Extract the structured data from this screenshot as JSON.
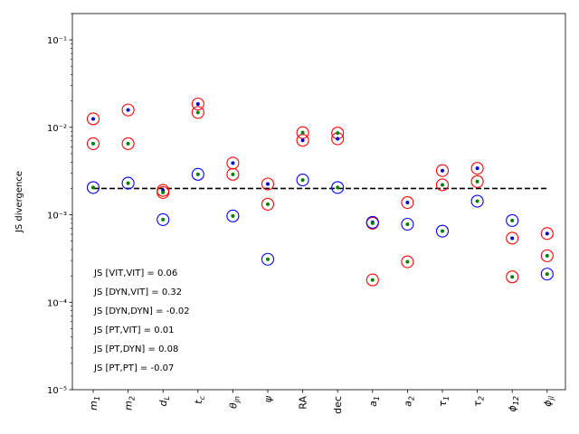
{
  "chart_data": {
    "type": "scatter",
    "title": "",
    "xlabel": "",
    "ylabel": "JS divergence",
    "yscale": "log",
    "ylim": [
      1e-05,
      0.2
    ],
    "y_tick_labels": [
      "10⁻⁵",
      "10⁻⁴",
      "10⁻³",
      "10⁻²",
      "10⁻¹"
    ],
    "y_tick_values": [
      1e-05,
      0.0001,
      0.001,
      0.01,
      0.1
    ],
    "categories": [
      "m₁",
      "m₂",
      "d_L",
      "t_c",
      "θ_jn",
      "ψ",
      "RA",
      "dec",
      "a₁",
      "a₂",
      "τ₁",
      "τ₂",
      "ϕ₁₂",
      "ϕ_jl"
    ],
    "category_labels": [
      {
        "main": "m",
        "sub": "1"
      },
      {
        "main": "m",
        "sub": "2"
      },
      {
        "main": "d",
        "sub": "L"
      },
      {
        "main": "t",
        "sub": "c"
      },
      {
        "main": "θ",
        "sub": "jn"
      },
      {
        "main": "ψ",
        "sub": ""
      },
      {
        "main": "RA",
        "sub": ""
      },
      {
        "main": "dec",
        "sub": ""
      },
      {
        "main": "a",
        "sub": "1"
      },
      {
        "main": "a",
        "sub": "2"
      },
      {
        "main": "τ",
        "sub": "1"
      },
      {
        "main": "τ",
        "sub": "2"
      },
      {
        "main": "ϕ",
        "sub": "12"
      },
      {
        "main": "ϕ",
        "sub": "jl"
      }
    ],
    "reference_line": {
      "value": 0.002,
      "style": "dashed",
      "color": "#000000"
    },
    "series": [
      {
        "marker": "open-circle",
        "color": "#ff0000",
        "values": [
          0.0125,
          0.0158,
          0.0019,
          0.0185,
          0.0039,
          0.00225,
          0.0087,
          0.0086,
          0.00018,
          0.00138,
          0.0032,
          0.0034,
          0.000195,
          0.00061
        ]
      },
      {
        "marker": "open-circle",
        "color": "#ff0000",
        "values": [
          0.0065,
          0.0065,
          0.0018,
          0.0148,
          0.0029,
          0.00132,
          0.0071,
          0.0074,
          0.0008,
          0.00029,
          0.0022,
          0.0024,
          0.00054,
          0.00034
        ]
      },
      {
        "marker": "open-circle",
        "color": "#0000ff",
        "values": [
          0.00205,
          0.0023,
          0.00088,
          0.0029,
          0.00097,
          0.00031,
          0.0025,
          0.00205,
          0.00082,
          0.00078,
          0.00065,
          0.00143,
          0.00086,
          0.00021
        ]
      },
      {
        "marker": "dot",
        "color": "#0000cc",
        "values": [
          0.0125,
          0.0158,
          0.0019,
          0.0185,
          0.0039,
          0.00225,
          0.0071,
          0.0074,
          0.00082,
          0.00138,
          0.0032,
          0.0034,
          0.00054,
          0.00061
        ]
      },
      {
        "marker": "dot",
        "color": "#008000",
        "values": [
          0.0065,
          0.0065,
          0.0018,
          0.0148,
          0.0029,
          0.00132,
          0.0087,
          0.0086,
          0.0008,
          0.00029,
          0.0022,
          0.0024,
          0.000195,
          0.00034
        ]
      },
      {
        "marker": "dot",
        "color": "#008000",
        "values": [
          0.00205,
          0.0023,
          0.00088,
          0.0029,
          0.00097,
          0.00031,
          0.0025,
          0.00205,
          0.00018,
          0.00078,
          0.00065,
          0.00143,
          0.00086,
          0.00021
        ]
      }
    ],
    "annotations": [
      "JS [VIT,VIT] = 0.06",
      "JS [DYN,VIT] = 0.32",
      "JS [DYN,DYN] = -0.02",
      "JS [PT,VIT] = 0.01",
      "JS [PT,DYN] = 0.08",
      "JS [PT,PT] = -0.07"
    ],
    "grid": false
  }
}
